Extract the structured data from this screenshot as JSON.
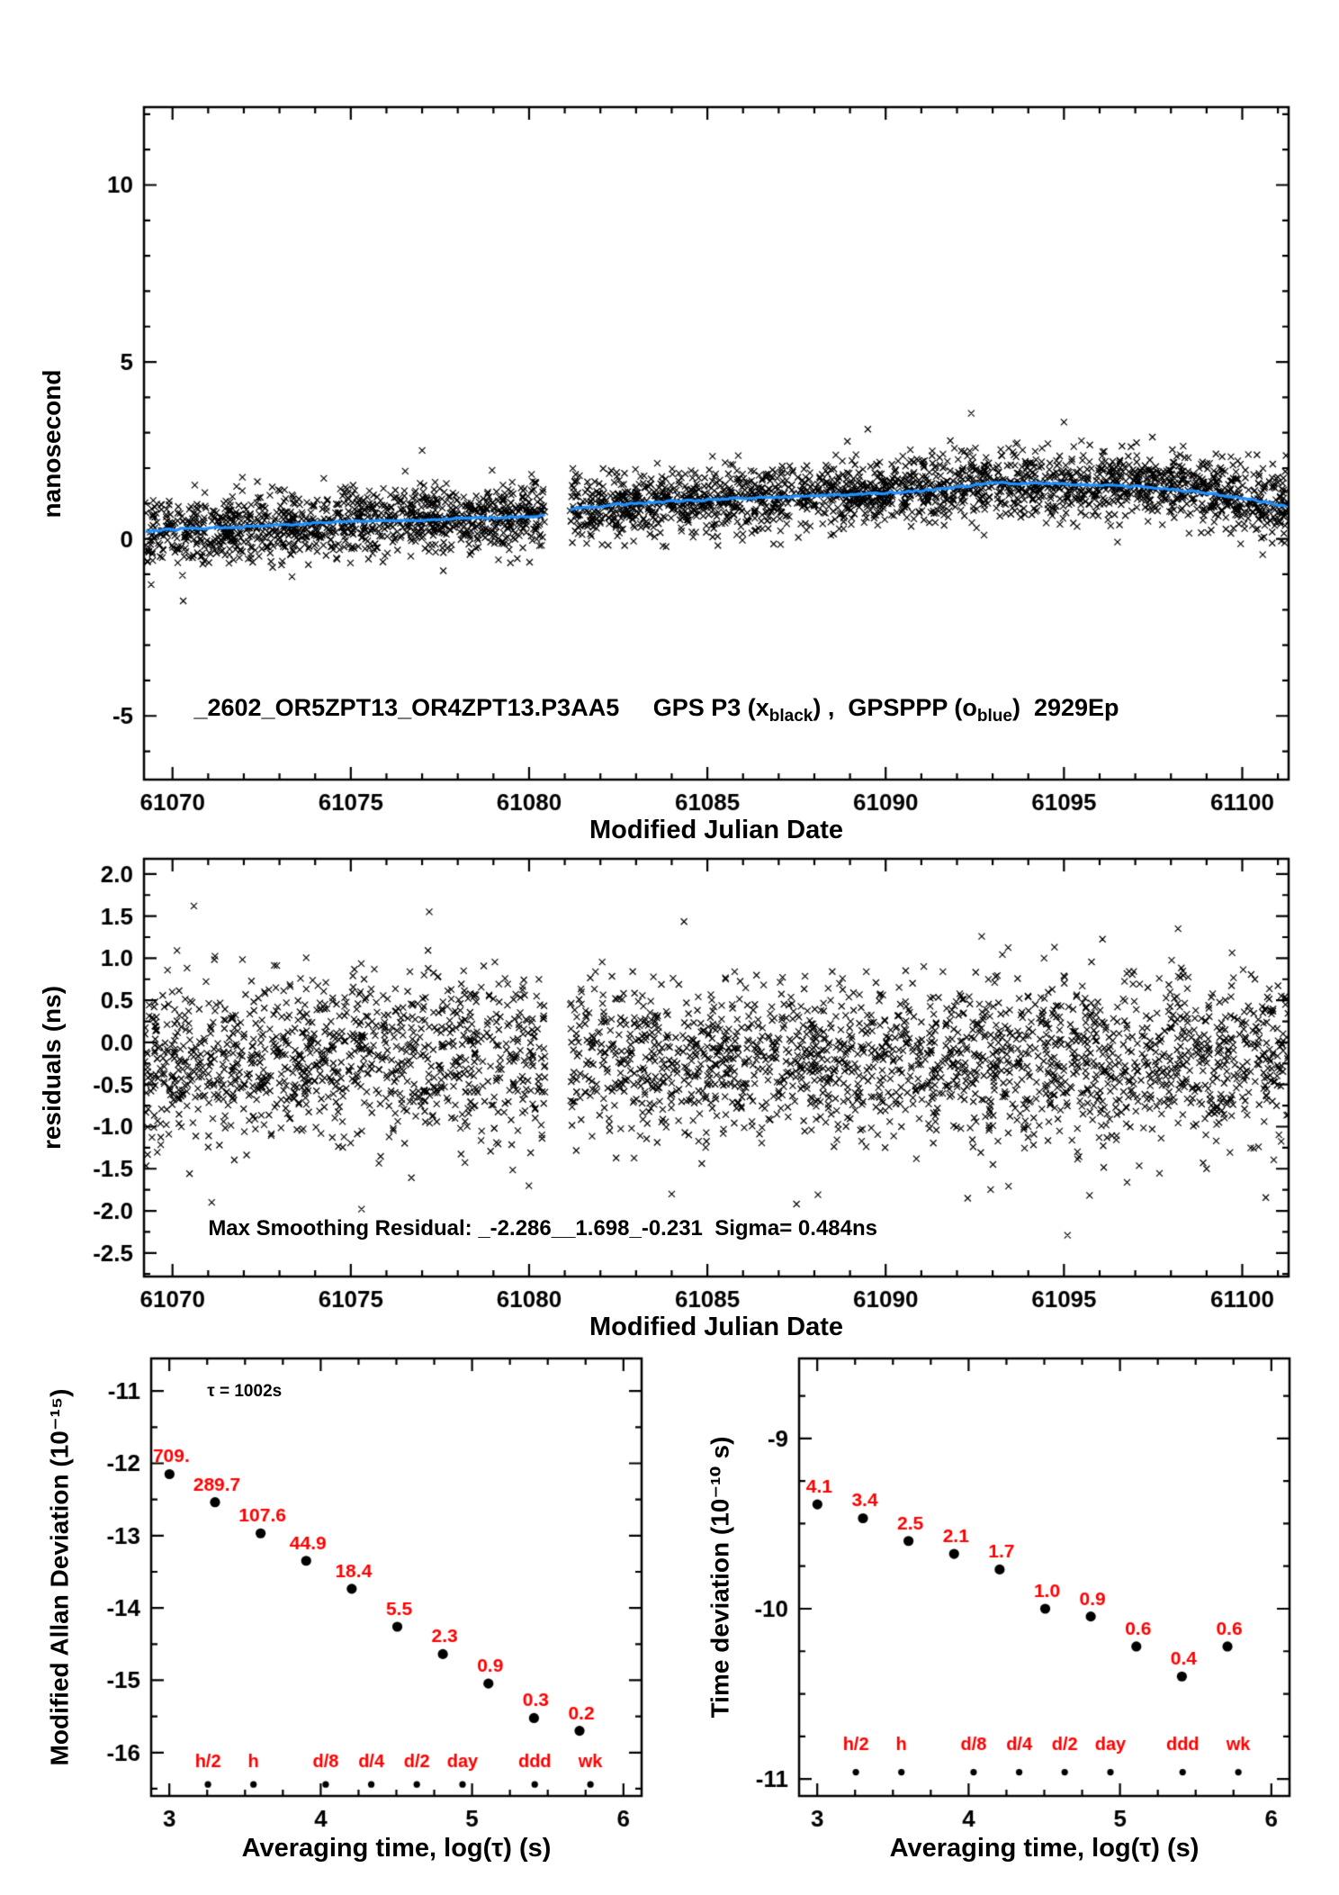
{
  "colors": {
    "black": "#000000",
    "blue": "#1e90ff",
    "red": "#ff0000",
    "background": "#ffffff"
  },
  "chart_data": [
    {
      "id": "phase-comparison",
      "type": "scatter",
      "title_tokens": [
        {
          "t": "_2602_OR5ZPT13_OR4ZPT13.P3AA5     GPS P3 (x"
        },
        {
          "t": "black",
          "sub": true
        },
        {
          "t": ") ,  GPSPPP (o"
        },
        {
          "t": "blue",
          "sub": true
        },
        {
          "t": ")  2929Ep"
        }
      ],
      "xlabel": "Modified Julian Date",
      "ylabel": "nanosecond",
      "xlim": [
        61069.2,
        61101.3
      ],
      "ylim": [
        -6.8,
        12.2
      ],
      "x_ticks": [
        61070,
        61075,
        61080,
        61085,
        61090,
        61095,
        61100
      ],
      "y_ticks": [
        10,
        5,
        0,
        -5
      ],
      "x_minor_step": 1,
      "y_minor_step": 1,
      "gap": [
        61080.45,
        61081.15
      ],
      "marker": "x",
      "marker_color": "#000000",
      "trend_color": "#1e90ff",
      "noise_sigma": 0.484,
      "n_points": 3200,
      "seed": 1234,
      "trend": [
        [
          61069.3,
          0.22
        ],
        [
          61070.5,
          0.3
        ],
        [
          61072,
          0.35
        ],
        [
          61073.5,
          0.42
        ],
        [
          61075,
          0.5
        ],
        [
          61076.5,
          0.52
        ],
        [
          61078,
          0.58
        ],
        [
          61079.5,
          0.62
        ],
        [
          61080.45,
          0.66
        ],
        [
          61081.15,
          0.84
        ],
        [
          61082.5,
          0.98
        ],
        [
          61084,
          1.06
        ],
        [
          61085.5,
          1.12
        ],
        [
          61087,
          1.18
        ],
        [
          61088.5,
          1.24
        ],
        [
          61090,
          1.3
        ],
        [
          61091.5,
          1.4
        ],
        [
          61093,
          1.58
        ],
        [
          61094.5,
          1.57
        ],
        [
          61096,
          1.52
        ],
        [
          61097.5,
          1.45
        ],
        [
          61099,
          1.3
        ],
        [
          61100.2,
          1.12
        ],
        [
          61101.2,
          0.93
        ]
      ],
      "extra_points": [
        [
          61092.4,
          3.55
        ],
        [
          61095.0,
          3.3
        ],
        [
          61077.0,
          2.5
        ],
        [
          61070.3,
          -1.75
        ],
        [
          61089.5,
          3.1
        ]
      ]
    },
    {
      "id": "smoothing-residuals",
      "type": "scatter",
      "xlabel": "Modified Julian Date",
      "ylabel": "residuals (ns)",
      "annotation": "Max Smoothing Residual: _-2.286__1.698_-0.231  Sigma= 0.484ns",
      "max_residuals": [
        -2.286,
        1.698,
        -0.231
      ],
      "sigma_ns": 0.484,
      "xlim": [
        61069.2,
        61101.3
      ],
      "ylim": [
        -2.78,
        2.18
      ],
      "x_ticks": [
        61070,
        61075,
        61080,
        61085,
        61090,
        61095,
        61100
      ],
      "y_ticks": [
        2.0,
        1.5,
        1.0,
        0.5,
        0.0,
        -0.5,
        -1.0,
        -1.5,
        -2.0,
        -2.5
      ],
      "y_tick_decimals": 1,
      "x_minor_step": 1,
      "y_minor_step": 0.25,
      "gap": [
        61080.45,
        61081.15
      ],
      "marker": "x",
      "mean": -0.2,
      "noise_sigma": 0.484,
      "n_points": 3000,
      "seed": 987,
      "extra_points": [
        [
          61070.6,
          1.62
        ],
        [
          61077.2,
          1.55
        ],
        [
          61071.1,
          -1.9
        ],
        [
          61075.3,
          -1.98
        ],
        [
          61087.5,
          -1.92
        ],
        [
          61095.1,
          -2.29
        ],
        [
          61092.3,
          -1.85
        ],
        [
          61084.0,
          -1.8
        ],
        [
          61099.0,
          -1.5
        ],
        [
          61098.2,
          1.35
        ]
      ]
    },
    {
      "id": "modified-allan-deviation",
      "type": "scatter",
      "xlabel": "Averaging time, log(τ) (s)",
      "ylabel": "Modified Allan Deviation (10⁻¹⁵)",
      "annotation": "τ = 1002s",
      "xlim": [
        2.88,
        6.12
      ],
      "ylim": [
        -16.6,
        -10.55
      ],
      "x_ticks": [
        3,
        4,
        5,
        6
      ],
      "y_ticks": [
        -11,
        -12,
        -13,
        -14,
        -15,
        -16
      ],
      "x_minor_step": 0.25,
      "y_minor_step": 0.5,
      "x": [
        3.001,
        3.302,
        3.603,
        3.904,
        4.205,
        4.506,
        4.807,
        5.108,
        5.409,
        5.71
      ],
      "values": [
        709,
        289.7,
        107.6,
        44.9,
        18.4,
        5.5,
        2.3,
        0.9,
        0.3,
        0.2
      ],
      "unit_exp": -15,
      "point_labels": [
        "709.",
        "289.7",
        "107.6",
        "44.9",
        "18.4",
        "5.5",
        "2.3",
        "0.9",
        "0.3",
        "0.2"
      ],
      "label_color": "#ff0000",
      "tau_marks": {
        "labels": [
          "h/2",
          "h",
          "d/8",
          "d/4",
          "d/2",
          "day",
          "ddd",
          "wk"
        ],
        "x": [
          3.255,
          3.556,
          4.033,
          4.334,
          4.635,
          4.937,
          5.414,
          5.782
        ],
        "y": -16.44,
        "label_y": -16.2
      }
    },
    {
      "id": "time-deviation",
      "type": "scatter",
      "xlabel": "Averaging time, log(τ) (s)",
      "ylabel": "Time deviation (10⁻¹⁰ s)",
      "xlim": [
        2.88,
        6.12
      ],
      "ylim": [
        -11.1,
        -8.53
      ],
      "x_ticks": [
        3,
        4,
        5,
        6
      ],
      "y_ticks": [
        -9,
        -10,
        -11
      ],
      "x_minor_step": 0.25,
      "y_minor_step": 0.25,
      "x": [
        3.001,
        3.302,
        3.603,
        3.904,
        4.205,
        4.506,
        4.807,
        5.108,
        5.409,
        5.71
      ],
      "values": [
        4.1,
        3.4,
        2.5,
        2.1,
        1.7,
        1.0,
        0.9,
        0.6,
        0.4,
        0.6
      ],
      "unit_exp": -10,
      "point_labels": [
        "4.1",
        "3.4",
        "2.5",
        "2.1",
        "1.7",
        "1.0",
        "0.9",
        "0.6",
        "0.4",
        "0.6"
      ],
      "label_color": "#ff0000",
      "tau_marks": {
        "labels": [
          "h/2",
          "h",
          "d/8",
          "d/4",
          "d/2",
          "day",
          "ddd",
          "wk"
        ],
        "x": [
          3.255,
          3.556,
          4.033,
          4.334,
          4.635,
          4.937,
          5.414,
          5.782
        ],
        "y": -10.96,
        "label_y": -10.83
      }
    }
  ]
}
